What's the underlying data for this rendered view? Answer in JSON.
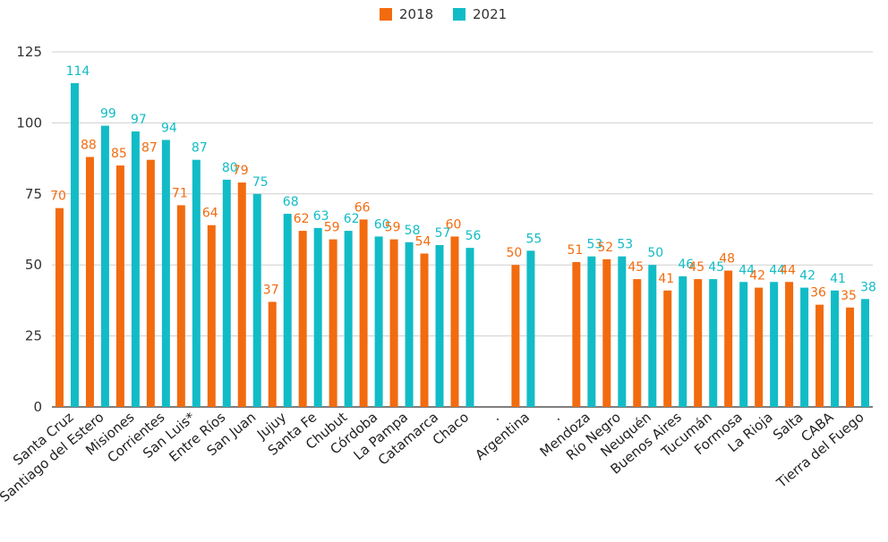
{
  "chart_data": {
    "type": "bar",
    "title": "",
    "xlabel": "",
    "ylabel": "",
    "ylim": [
      0,
      125
    ],
    "yticks": [
      0,
      25,
      50,
      75,
      100,
      125
    ],
    "grid": true,
    "legend_position": "top-center",
    "categories": [
      "Santa Cruz",
      "Santiago del Estero",
      "Misiones",
      "Corrientes",
      "San Luis*",
      "Entre Ríos",
      "San Juan",
      "Jujuy",
      "Santa Fe",
      "Chubut",
      "Córdoba",
      "La Pampa",
      "Catamarca",
      "Chaco",
      ".",
      "Argentina",
      ".",
      "Mendoza",
      "Río Negro",
      "Neuquén",
      "Buenos Aires",
      "Tucumán",
      "Formosa",
      "La Rioja",
      "Salta",
      "CABA",
      "Tierra del Fuego"
    ],
    "series": [
      {
        "name": "2018",
        "color": "#f26b0f",
        "values": [
          70,
          88,
          85,
          87,
          71,
          64,
          79,
          37,
          62,
          59,
          66,
          59,
          54,
          60,
          null,
          50,
          null,
          51,
          52,
          45,
          41,
          45,
          48,
          42,
          44,
          36,
          35
        ]
      },
      {
        "name": "2021",
        "color": "#12bcc6",
        "values": [
          114,
          99,
          97,
          94,
          87,
          80,
          75,
          68,
          63,
          62,
          60,
          58,
          57,
          56,
          null,
          55,
          null,
          53,
          53,
          50,
          46,
          45,
          44,
          44,
          42,
          41,
          38
        ]
      }
    ]
  }
}
